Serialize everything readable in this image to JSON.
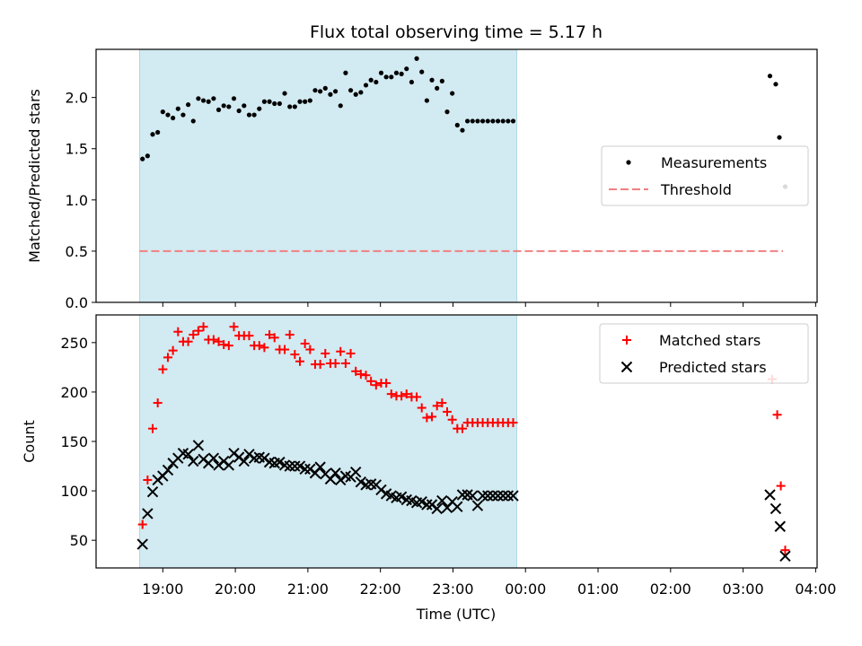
{
  "chart_data": {
    "title": "Flux total observing time = 5.17 h",
    "x_time_axis": {
      "label": "Time (UTC)",
      "ticks": [
        "19:00",
        "20:00",
        "21:00",
        "22:00",
        "23:00",
        "00:00",
        "01:00",
        "02:00",
        "03:00",
        "04:00"
      ],
      "tick_hours": [
        19,
        20,
        21,
        22,
        23,
        24,
        25,
        26,
        27,
        28
      ],
      "range_hours": [
        18.08,
        28.02
      ]
    },
    "shaded_interval_hours": [
      18.68,
      23.88
    ],
    "shade_color": "#add8e6",
    "panels": [
      {
        "type": "scatter",
        "ylabel": "Matched/Predicted stars",
        "ylim": [
          0,
          2.47
        ],
        "yticks": [
          "0.0",
          "0.5",
          "1.0",
          "1.5",
          "2.0"
        ],
        "ytick_values": [
          0,
          0.5,
          1.0,
          1.5,
          2.0
        ],
        "legend_position": "center-right",
        "series": [
          {
            "name": "Measurements",
            "marker": "dot",
            "color": "#000000",
            "x": [
              18.72,
              18.79,
              18.86,
              18.93,
              19.0,
              19.07,
              19.14,
              19.21,
              19.28,
              19.35,
              19.42,
              19.49,
              19.56,
              19.63,
              19.7,
              19.77,
              19.84,
              19.91,
              19.98,
              20.05,
              20.12,
              20.19,
              20.26,
              20.33,
              20.4,
              20.47,
              20.54,
              20.61,
              20.68,
              20.75,
              20.82,
              20.89,
              20.96,
              21.03,
              21.1,
              21.17,
              21.24,
              21.31,
              21.38,
              21.45,
              21.52,
              21.59,
              21.66,
              21.73,
              21.8,
              21.87,
              21.94,
              22.01,
              22.08,
              22.15,
              22.22,
              22.29,
              22.36,
              22.43,
              22.5,
              22.57,
              22.64,
              22.71,
              22.78,
              22.85,
              22.92,
              22.99,
              23.06,
              23.13,
              23.2,
              23.27,
              23.34,
              23.41,
              23.48,
              23.55,
              23.62,
              23.69,
              23.76,
              23.83,
              27.37,
              27.45,
              27.5,
              27.58
            ],
            "y": [
              1.4,
              1.43,
              1.64,
              1.66,
              1.86,
              1.83,
              1.8,
              1.89,
              1.83,
              1.93,
              1.77,
              1.99,
              1.97,
              1.96,
              1.99,
              1.88,
              1.92,
              1.91,
              1.99,
              1.87,
              1.92,
              1.83,
              1.83,
              1.89,
              1.96,
              1.96,
              1.94,
              1.94,
              2.04,
              1.91,
              1.91,
              1.96,
              1.96,
              1.97,
              2.07,
              2.06,
              2.09,
              2.03,
              2.06,
              1.92,
              2.24,
              2.07,
              2.03,
              2.05,
              2.12,
              2.17,
              2.15,
              2.24,
              2.2,
              2.2,
              2.24,
              2.23,
              2.28,
              2.15,
              2.38,
              2.25,
              1.97,
              2.17,
              2.09,
              2.16,
              1.86,
              2.04,
              1.73,
              1.68,
              1.77,
              1.77,
              1.77,
              1.77,
              1.77,
              1.77,
              1.77,
              1.77,
              1.77,
              1.77,
              2.21,
              2.13,
              1.61,
              1.13
            ]
          },
          {
            "name": "Threshold",
            "marker": "dashed-line",
            "color": "#f08080",
            "x": [
              18.68,
              27.55
            ],
            "y": [
              0.5,
              0.5
            ]
          }
        ]
      },
      {
        "type": "scatter",
        "ylabel": "Count",
        "ylim": [
          22,
          278
        ],
        "yticks": [
          "50",
          "100",
          "150",
          "200",
          "250"
        ],
        "ytick_values": [
          50,
          100,
          150,
          200,
          250
        ],
        "legend_position": "top-right",
        "series": [
          {
            "name": "Matched stars",
            "marker": "plus",
            "color": "#ff0000",
            "x": [
              18.72,
              18.79,
              18.86,
              18.93,
              19.0,
              19.07,
              19.14,
              19.21,
              19.28,
              19.35,
              19.42,
              19.49,
              19.56,
              19.63,
              19.7,
              19.77,
              19.84,
              19.91,
              19.98,
              20.05,
              20.12,
              20.19,
              20.26,
              20.33,
              20.4,
              20.47,
              20.54,
              20.61,
              20.68,
              20.75,
              20.82,
              20.89,
              20.96,
              21.03,
              21.1,
              21.17,
              21.24,
              21.31,
              21.38,
              21.45,
              21.52,
              21.59,
              21.66,
              21.73,
              21.8,
              21.87,
              21.94,
              22.01,
              22.08,
              22.15,
              22.22,
              22.29,
              22.36,
              22.43,
              22.5,
              22.57,
              22.64,
              22.71,
              22.78,
              22.85,
              22.92,
              22.99,
              23.06,
              23.13,
              23.2,
              23.27,
              23.34,
              23.41,
              23.48,
              23.55,
              23.62,
              23.69,
              23.76,
              23.83,
              27.4,
              27.47,
              27.52,
              27.58
            ],
            "y": [
              66,
              111,
              163,
              189,
              223,
              235,
              242,
              261,
              251,
              251,
              258,
              262,
              266,
              253,
              253,
              251,
              248,
              247,
              266,
              257,
              257,
              257,
              247,
              247,
              245,
              258,
              255,
              243,
              243,
              258,
              238,
              231,
              249,
              243,
              228,
              228,
              239,
              229,
              229,
              241,
              229,
              239,
              221,
              218,
              217,
              211,
              207,
              209,
              209,
              198,
              196,
              196,
              198,
              195,
              195,
              184,
              174,
              175,
              186,
              189,
              180,
              172,
              163,
              163,
              169,
              169,
              169,
              169,
              169,
              169,
              169,
              169,
              169,
              169,
              213,
              177,
              105,
              40
            ]
          },
          {
            "name": "Predicted stars",
            "marker": "x",
            "color": "#000000",
            "x": [
              18.72,
              18.79,
              18.86,
              18.93,
              19.0,
              19.07,
              19.14,
              19.21,
              19.28,
              19.35,
              19.42,
              19.49,
              19.56,
              19.63,
              19.7,
              19.77,
              19.84,
              19.91,
              19.98,
              20.05,
              20.12,
              20.19,
              20.26,
              20.33,
              20.4,
              20.47,
              20.54,
              20.61,
              20.68,
              20.75,
              20.82,
              20.89,
              20.96,
              21.03,
              21.1,
              21.17,
              21.24,
              21.31,
              21.38,
              21.45,
              21.52,
              21.59,
              21.66,
              21.73,
              21.8,
              21.87,
              21.94,
              22.01,
              22.08,
              22.15,
              22.22,
              22.29,
              22.36,
              22.43,
              22.5,
              22.57,
              22.64,
              22.71,
              22.78,
              22.85,
              22.92,
              22.99,
              23.06,
              23.13,
              23.2,
              23.27,
              23.34,
              23.41,
              23.48,
              23.55,
              23.62,
              23.69,
              23.76,
              23.83,
              27.37,
              27.45,
              27.51,
              27.58
            ],
            "y": [
              46,
              77,
              99,
              111,
              115,
              121,
              128,
              133,
              138,
              137,
              130,
              146,
              132,
              128,
              133,
              126,
              130,
              126,
              138,
              134,
              130,
              137,
              133,
              134,
              133,
              129,
              128,
              129,
              126,
              125,
              125,
              125,
              122,
              122,
              118,
              124,
              117,
              112,
              118,
              111,
              115,
              114,
              119,
              109,
              106,
              107,
              106,
              101,
              97,
              95,
              93,
              94,
              91,
              90,
              88,
              89,
              86,
              86,
              82,
              90,
              83,
              89,
              84,
              96,
              96,
              95,
              85,
              95,
              95,
              95,
              95,
              95,
              95,
              95,
              96,
              82,
              64,
              34
            ]
          }
        ]
      }
    ]
  }
}
